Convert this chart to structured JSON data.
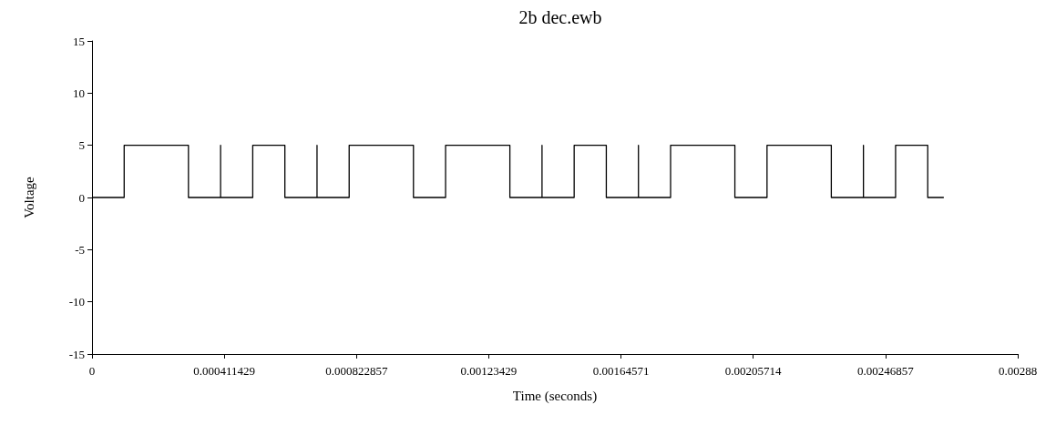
{
  "chart_data": {
    "type": "line",
    "title": "2b dec.ewb",
    "xlabel": "Time (seconds)",
    "ylabel": "Voltage",
    "xlim": [
      0,
      0.00288
    ],
    "xticks": [
      0,
      0.000411429,
      0.000822857,
      0.00123429,
      0.00164571,
      0.00205714,
      0.00246857,
      0.00288
    ],
    "ylim": [
      -15,
      15
    ],
    "yticks": [
      -15,
      -10,
      -5,
      0,
      5,
      10,
      15
    ],
    "grid": false,
    "marker": "none",
    "line_style": "solid",
    "series": [
      {
        "color": "#000000",
        "x": [
          0,
          0.0001,
          0.0001,
          0.0003,
          0.0003,
          0.0004,
          0.0004,
          0.0004,
          0.0005,
          0.0005,
          0.0006,
          0.0006,
          0.0007,
          0.0007,
          0.0007,
          0.0008,
          0.0008,
          0.001,
          0.001,
          0.0011,
          0.0011,
          0.0013,
          0.0013,
          0.0014,
          0.0014,
          0.0014,
          0.0015,
          0.0015,
          0.0016,
          0.0016,
          0.0017,
          0.0017,
          0.0017,
          0.0018,
          0.0018,
          0.002,
          0.002,
          0.0021,
          0.0021,
          0.0023,
          0.0023,
          0.0024,
          0.0024,
          0.0024,
          0.0025,
          0.0025,
          0.0026,
          0.0026,
          0.00265
        ],
        "values": [
          0,
          0,
          5,
          5,
          0,
          0,
          5,
          0,
          0,
          5,
          5,
          0,
          0,
          5,
          0,
          0,
          5,
          5,
          0,
          0,
          5,
          5,
          0,
          0,
          5,
          0,
          0,
          5,
          5,
          0,
          0,
          5,
          0,
          0,
          5,
          5,
          0,
          0,
          5,
          5,
          0,
          0,
          5,
          0,
          0,
          5,
          5,
          0,
          0
        ]
      }
    ]
  }
}
